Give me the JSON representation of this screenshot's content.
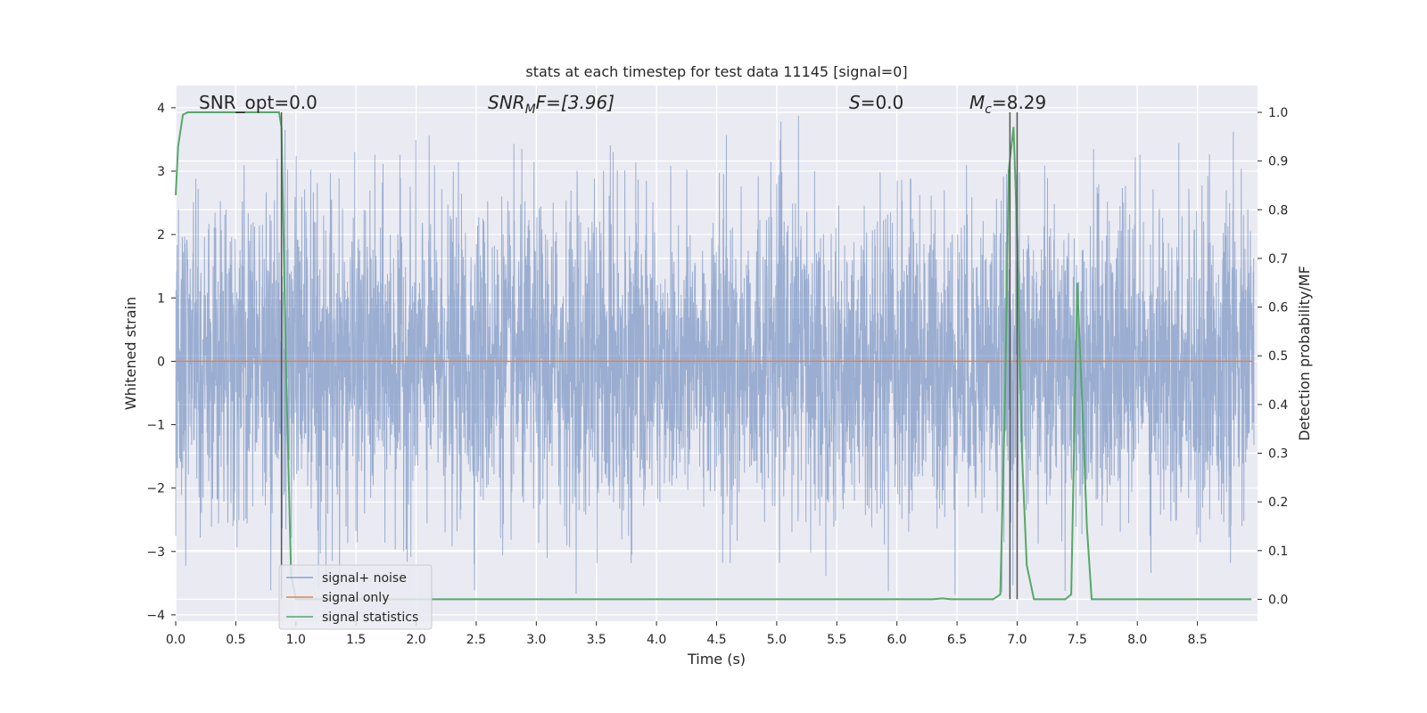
{
  "chart_data": {
    "type": "line",
    "title": "stats at each timestep for test data 11145 [signal=0]",
    "xlabel": "Time (s)",
    "ylabel": "Whitened strain",
    "ylabel_right": "Detection probability/MF",
    "xlim": [
      0,
      9.0
    ],
    "ylim": [
      -4.1,
      4.35
    ],
    "ylim_right": [
      -0.045,
      1.055
    ],
    "x_ticks": [
      "0.0",
      "0.5",
      "1.0",
      "1.5",
      "2.0",
      "2.5",
      "3.0",
      "3.5",
      "4.0",
      "4.5",
      "5.0",
      "5.5",
      "6.0",
      "6.5",
      "7.0",
      "7.5",
      "8.0",
      "8.5"
    ],
    "y_ticks": [
      "−4",
      "−3",
      "−2",
      "−1",
      "0",
      "1",
      "2",
      "3",
      "4"
    ],
    "y_ticks_right": [
      "0.0",
      "0.1",
      "0.2",
      "0.3",
      "0.4",
      "0.5",
      "0.6",
      "0.7",
      "0.8",
      "0.9",
      "1.0"
    ],
    "grid": true,
    "legend_position": "lower-left",
    "annotations": {
      "snr_opt": "SNR_opt=0.0",
      "snr_mf_base": "SNR",
      "snr_mf_sub": "M",
      "snr_mf_rest": "F=[3.96]",
      "s_italic": "S",
      "s_rest": "=0.0",
      "mc_base": "M",
      "mc_sub": "c",
      "mc_rest": "=8.29"
    },
    "noise": {
      "description_range": [
        -3.7,
        4.0
      ],
      "sample_rate_hz": 512
    },
    "series": [
      {
        "name": "signal+ noise",
        "color": "#4c72b0"
      },
      {
        "name": "signal only",
        "color": "#dd8452",
        "x": [
          0,
          9.0
        ],
        "y": [
          0,
          0
        ]
      },
      {
        "name": "signal statistics",
        "color": "#55a868",
        "axis": "right",
        "x": [
          0,
          0.02,
          0.06,
          0.1,
          0.2,
          0.4,
          0.6,
          0.86,
          0.88,
          0.92,
          0.96,
          1.0,
          1.1,
          1.5,
          2.0,
          3.0,
          4.0,
          5.0,
          6.0,
          6.3,
          6.38,
          6.45,
          6.6,
          6.8,
          6.86,
          6.9,
          6.93,
          6.97,
          7.0,
          7.04,
          7.08,
          7.14,
          7.3,
          7.4,
          7.45,
          7.5,
          7.55,
          7.58,
          7.62,
          7.7,
          8.0,
          8.5,
          8.95
        ],
        "y": [
          0.83,
          0.93,
          0.995,
          1.0,
          1.0,
          1.0,
          1.0,
          1.0,
          0.97,
          0.45,
          0.05,
          0.0,
          0.0,
          0.0,
          0.0,
          0.0,
          0.0,
          0.0,
          0.0,
          0.0,
          0.002,
          0.0,
          0.0,
          0.0,
          0.01,
          0.42,
          0.88,
          0.97,
          0.75,
          0.3,
          0.07,
          0.0,
          0.0,
          0.0,
          0.01,
          0.65,
          0.35,
          0.15,
          0.0,
          0.0,
          0.0,
          0.0,
          0.0
        ]
      }
    ],
    "vertical_lines_x": [
      0.88,
      6.94,
      7.0
    ]
  }
}
